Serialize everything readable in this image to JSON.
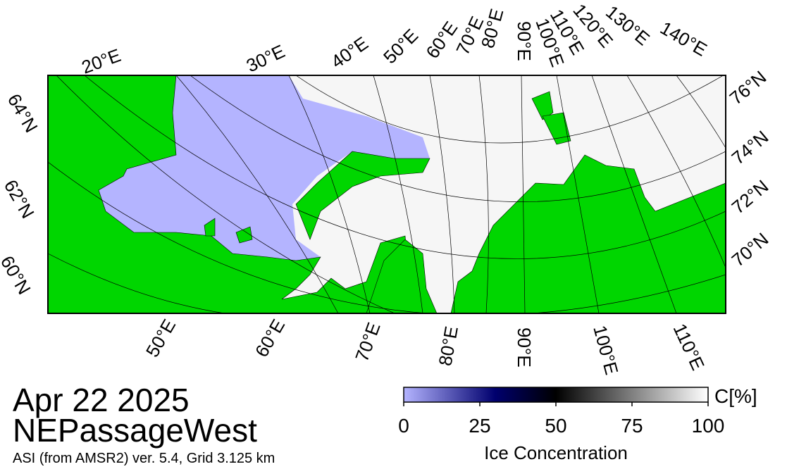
{
  "map": {
    "top_labels": [
      "20°E",
      "30°E",
      "40°E",
      "50°E",
      "60°E",
      "70°E",
      "80°E",
      "90°E",
      "100°E",
      "110°E",
      "120°E",
      "130°E",
      "140°E"
    ],
    "right_labels": [
      "76°N",
      "74°N",
      "72°N",
      "70°N"
    ],
    "left_labels": [
      "64°N",
      "62°N",
      "60°N"
    ],
    "bottom_labels": [
      "50°E",
      "60°E",
      "70°E",
      "80°E",
      "90°E",
      "100°E",
      "110°E"
    ]
  },
  "date": "Apr 22 2025",
  "region": "NEPassageWest",
  "source": "ASI (from AMSR2) ver. 5.4,  Grid 3.125 km",
  "colorbar": {
    "unit": "C[%]",
    "label": "Ice Concentration",
    "range": [
      0,
      100
    ],
    "ticks": [
      0,
      25,
      50,
      75,
      100
    ]
  }
}
